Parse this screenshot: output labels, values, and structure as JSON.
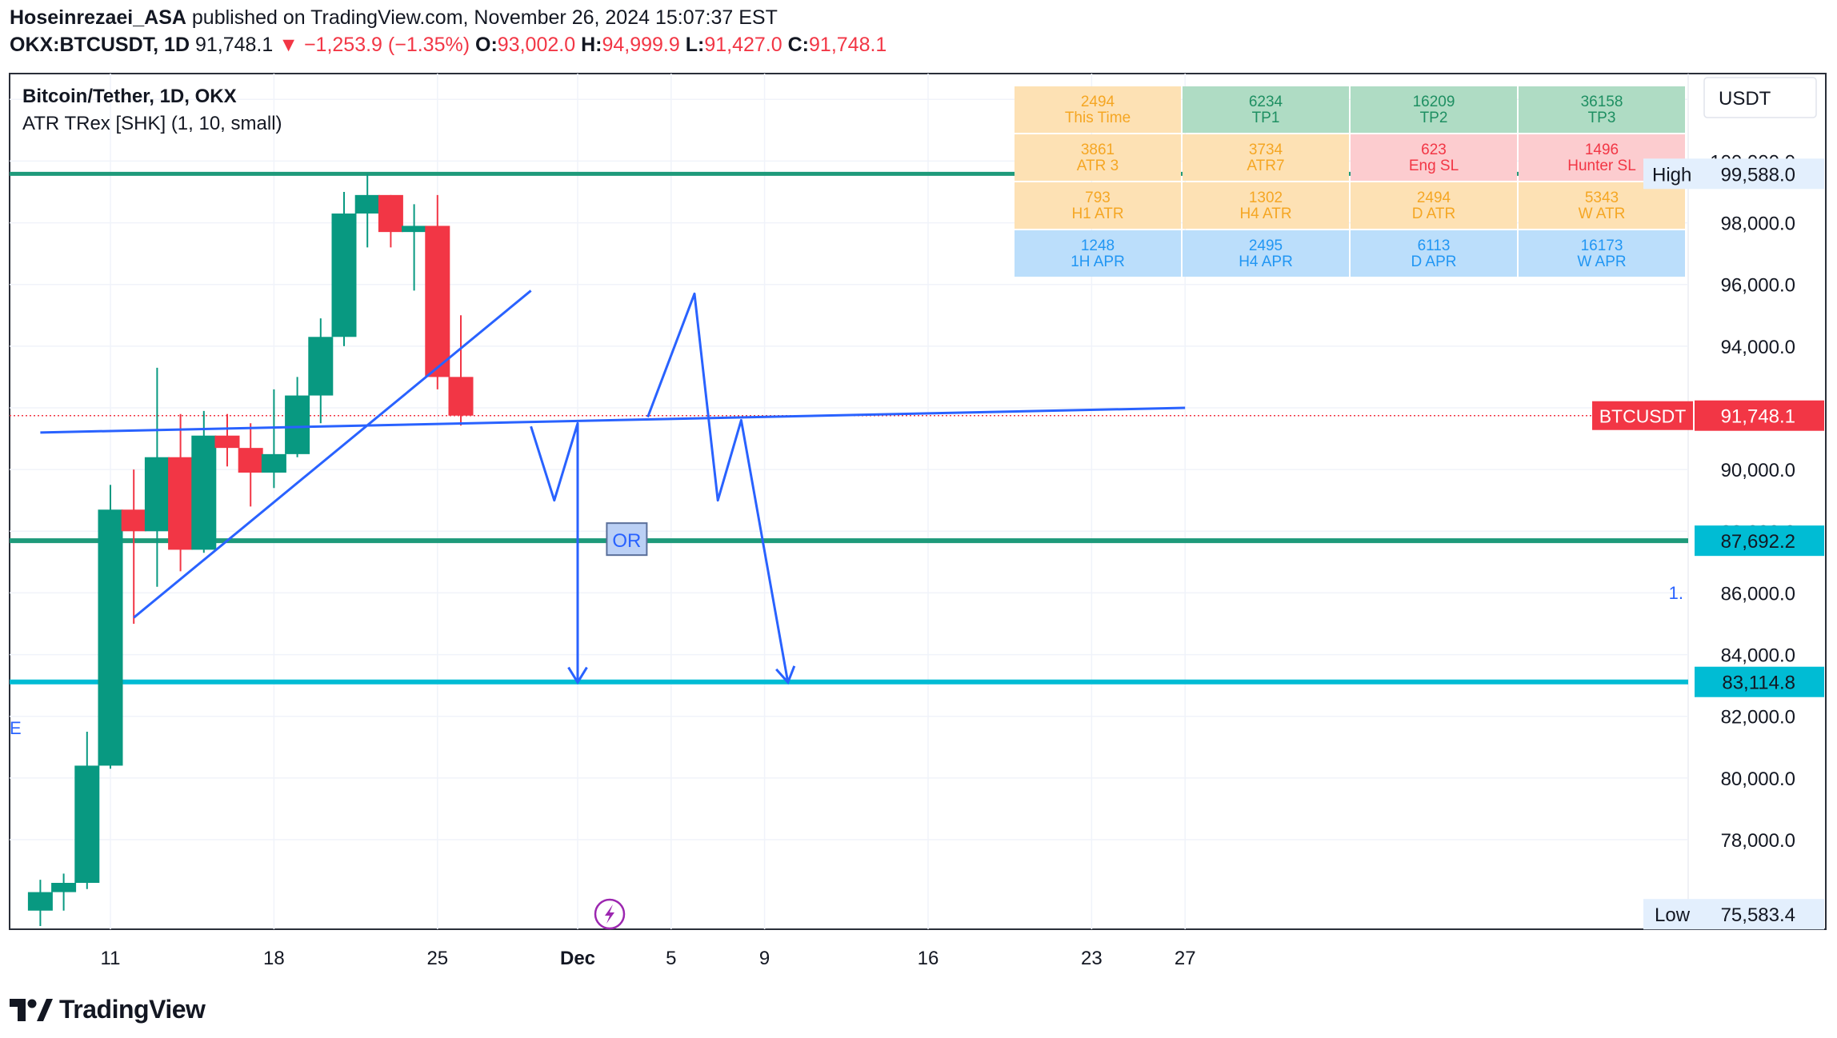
{
  "header": {
    "author": "Hoseinrezaei_ASA",
    "published_text": "published on TradingView.com, November 26, 2024 15:07:37 EST",
    "symbol": "OKX:BTCUSDT, 1D",
    "last": "91,748.1",
    "change": "−1,253.9 (−1.35%)",
    "o_label": "O:",
    "o": "93,002.0",
    "h_label": "H:",
    "h": "94,999.9",
    "l_label": "L:",
    "l": "91,427.0",
    "c_label": "C:",
    "c": "91,748.1"
  },
  "legend": {
    "title": "Bitcoin/Tether, 1D, OKX",
    "indicator": "ATR TRex [SHK] (1, 10, small)"
  },
  "footer": {
    "brand": "TradingView"
  },
  "price_scale": {
    "currency": "USDT",
    "high_label": "High",
    "high_value": "99,588.0",
    "low_label": "Low",
    "low_value": "75,583.4",
    "symbol_tag": "BTCUSDT",
    "last_value": "91,748.1",
    "level1_value": "87,692.2",
    "level2_value": "83,114.8"
  },
  "atr_table": [
    [
      {
        "v": "2494",
        "l": "This Time",
        "c": "orange"
      },
      {
        "v": "6234",
        "l": "TP1",
        "c": "green"
      },
      {
        "v": "16209",
        "l": "TP2",
        "c": "green"
      },
      {
        "v": "36158",
        "l": "TP3",
        "c": "green"
      }
    ],
    [
      {
        "v": "3861",
        "l": "ATR 3",
        "c": "orange"
      },
      {
        "v": "3734",
        "l": "ATR7",
        "c": "orange"
      },
      {
        "v": "623",
        "l": "Eng SL",
        "c": "red"
      },
      {
        "v": "1496",
        "l": "Hunter SL",
        "c": "red"
      }
    ],
    [
      {
        "v": "793",
        "l": "H1 ATR",
        "c": "orange"
      },
      {
        "v": "1302",
        "l": "H4 ATR",
        "c": "orange"
      },
      {
        "v": "2494",
        "l": "D ATR",
        "c": "orange"
      },
      {
        "v": "5343",
        "l": "W ATR",
        "c": "orange"
      }
    ],
    [
      {
        "v": "1248",
        "l": "1H APR",
        "c": "blue"
      },
      {
        "v": "2495",
        "l": "H4 APR",
        "c": "blue"
      },
      {
        "v": "6113",
        "l": "D APR",
        "c": "blue"
      },
      {
        "v": "16173",
        "l": "W APR",
        "c": "blue"
      }
    ]
  ],
  "annotations": {
    "or_label": "OR",
    "left_edge_text": "E",
    "right_edge_text": "1."
  },
  "colors": {
    "up": "#089981",
    "down": "#f23645",
    "drawing": "#2962ff",
    "level_green": "#1e9a7a",
    "level_cyan": "#00bcd4"
  },
  "chart_data": {
    "type": "candlestick",
    "symbol": "BTCUSDT",
    "interval": "1D",
    "ylim": [
      75200,
      101800
    ],
    "y_ticks": [
      78000,
      80000,
      82000,
      84000,
      86000,
      88000,
      90000,
      92000,
      94000,
      96000,
      98000,
      100000,
      102000
    ],
    "x_tick_labels": [
      {
        "date": "2024-11-11",
        "label": "11"
      },
      {
        "date": "2024-11-18",
        "label": "18"
      },
      {
        "date": "2024-11-25",
        "label": "25"
      },
      {
        "date": "2024-12-01",
        "label": "Dec"
      },
      {
        "date": "2024-12-05",
        "label": "5"
      },
      {
        "date": "2024-12-09",
        "label": "9"
      },
      {
        "date": "2024-12-16",
        "label": "16"
      },
      {
        "date": "2024-12-23",
        "label": "23"
      },
      {
        "date": "2024-12-27",
        "label": "27"
      }
    ],
    "candles": [
      {
        "date": "2024-11-08",
        "o": 75700,
        "h": 76700,
        "l": 75200,
        "c": 76300
      },
      {
        "date": "2024-11-09",
        "o": 76300,
        "h": 76900,
        "l": 75700,
        "c": 76600
      },
      {
        "date": "2024-11-10",
        "o": 76600,
        "h": 81500,
        "l": 76400,
        "c": 80400
      },
      {
        "date": "2024-11-11",
        "o": 80400,
        "h": 89500,
        "l": 80300,
        "c": 88700
      },
      {
        "date": "2024-11-12",
        "o": 88700,
        "h": 90000,
        "l": 85000,
        "c": 88000
      },
      {
        "date": "2024-11-13",
        "o": 88000,
        "h": 93300,
        "l": 86200,
        "c": 90400
      },
      {
        "date": "2024-11-14",
        "o": 90400,
        "h": 91800,
        "l": 86700,
        "c": 87400
      },
      {
        "date": "2024-11-15",
        "o": 87400,
        "h": 91900,
        "l": 87300,
        "c": 91100
      },
      {
        "date": "2024-11-16",
        "o": 91100,
        "h": 91800,
        "l": 90100,
        "c": 90700
      },
      {
        "date": "2024-11-17",
        "o": 90700,
        "h": 91500,
        "l": 88800,
        "c": 89900
      },
      {
        "date": "2024-11-18",
        "o": 89900,
        "h": 92600,
        "l": 89400,
        "c": 90500
      },
      {
        "date": "2024-11-19",
        "o": 90500,
        "h": 93000,
        "l": 90400,
        "c": 92400
      },
      {
        "date": "2024-11-20",
        "o": 92400,
        "h": 94900,
        "l": 91500,
        "c": 94300
      },
      {
        "date": "2024-11-21",
        "o": 94300,
        "h": 99000,
        "l": 94000,
        "c": 98300
      },
      {
        "date": "2024-11-22",
        "o": 98300,
        "h": 99588,
        "l": 97200,
        "c": 98900
      },
      {
        "date": "2024-11-23",
        "o": 98900,
        "h": 98900,
        "l": 97200,
        "c": 97700
      },
      {
        "date": "2024-11-24",
        "o": 97700,
        "h": 98600,
        "l": 95800,
        "c": 97900
      },
      {
        "date": "2024-11-25",
        "o": 97900,
        "h": 98900,
        "l": 92600,
        "c": 93000
      },
      {
        "date": "2024-11-26",
        "o": 93002,
        "h": 94999.9,
        "l": 91427,
        "c": 91748.1
      }
    ],
    "horizontal_levels": [
      {
        "price": 99588,
        "label": "High",
        "color": "#1e9a7a"
      },
      {
        "price": 87692.2,
        "color": "#1e9a7a"
      },
      {
        "price": 83114.8,
        "color": "#00bcd4"
      }
    ],
    "trendlines": [
      {
        "from": {
          "date": "2024-11-08",
          "price": 91200
        },
        "to": {
          "date": "2024-12-27",
          "price": 92000
        }
      },
      {
        "from": {
          "date": "2024-11-12",
          "price": 85200
        },
        "to": {
          "date": "2024-11-29",
          "price": 95800
        }
      }
    ],
    "projected_path_1": [
      {
        "date": "2024-11-29",
        "price": 91400
      },
      {
        "date": "2024-11-30",
        "price": 89000
      },
      {
        "date": "2024-12-01",
        "price": 91500
      },
      {
        "date": "2024-12-01",
        "price": 83100
      }
    ],
    "projected_path_2": [
      {
        "date": "2024-12-04",
        "price": 91700
      },
      {
        "date": "2024-12-06",
        "price": 95700
      },
      {
        "date": "2024-12-07",
        "price": 89000
      },
      {
        "date": "2024-12-08",
        "price": 91600
      },
      {
        "date": "2024-12-10",
        "price": 83100
      }
    ]
  }
}
